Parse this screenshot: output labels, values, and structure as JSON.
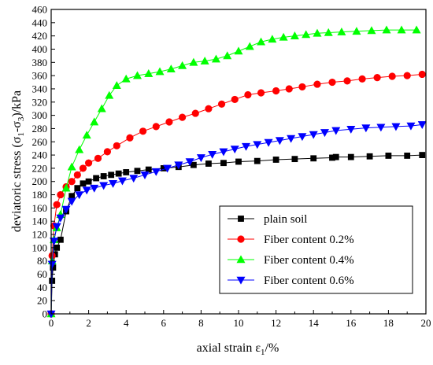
{
  "chart_data": {
    "type": "line",
    "xlabel": {
      "main": "axial strain ε",
      "sub": "1",
      "tail": "/%"
    },
    "ylabel": {
      "p1": "deviatoric stress (σ",
      "s1": "1",
      "p2": "-σ",
      "s2": "3",
      "p3": ")/kPa"
    },
    "xlim": [
      0,
      20
    ],
    "ylim": [
      0,
      460
    ],
    "xticks": [
      "0",
      "2",
      "4",
      "6",
      "8",
      "10",
      "12",
      "14",
      "16",
      "18",
      "20"
    ],
    "yticks": [
      "0",
      "20",
      "40",
      "60",
      "80",
      "100",
      "120",
      "140",
      "160",
      "180",
      "200",
      "220",
      "240",
      "260",
      "280",
      "300",
      "320",
      "340",
      "360",
      "380",
      "400",
      "420",
      "440",
      "460"
    ],
    "legend_position": "bottom-right",
    "series": [
      {
        "name": "plain soil",
        "color": "#000000",
        "marker": "square",
        "points": [
          [
            0,
            0
          ],
          [
            0.05,
            50
          ],
          [
            0.1,
            70
          ],
          [
            0.2,
            90
          ],
          [
            0.3,
            100
          ],
          [
            0.5,
            112
          ],
          [
            0.8,
            155
          ],
          [
            1.1,
            178
          ],
          [
            1.4,
            190
          ],
          [
            1.7,
            197
          ],
          [
            2.0,
            200
          ],
          [
            2.4,
            205
          ],
          [
            2.8,
            208
          ],
          [
            3.2,
            210
          ],
          [
            3.6,
            212
          ],
          [
            4.0,
            214
          ],
          [
            4.6,
            216
          ],
          [
            5.2,
            218
          ],
          [
            6.0,
            220
          ],
          [
            6.8,
            222
          ],
          [
            7.6,
            225
          ],
          [
            8.4,
            227
          ],
          [
            9.2,
            228
          ],
          [
            10.0,
            230
          ],
          [
            11.0,
            231
          ],
          [
            12.0,
            233
          ],
          [
            13.0,
            234
          ],
          [
            14.0,
            235
          ],
          [
            15.0,
            236
          ],
          [
            15.2,
            237
          ],
          [
            16.0,
            237
          ],
          [
            17.0,
            238
          ],
          [
            18.0,
            239
          ],
          [
            19.0,
            239
          ],
          [
            19.8,
            240
          ]
        ]
      },
      {
        "name": "Fiber content 0.2%",
        "color": "#ff0000",
        "marker": "circle",
        "points": [
          [
            0,
            0
          ],
          [
            0.05,
            88
          ],
          [
            0.15,
            133
          ],
          [
            0.3,
            165
          ],
          [
            0.5,
            180
          ],
          [
            0.8,
            192
          ],
          [
            1.1,
            200
          ],
          [
            1.4,
            210
          ],
          [
            1.7,
            220
          ],
          [
            2.0,
            228
          ],
          [
            2.5,
            235
          ],
          [
            3.0,
            245
          ],
          [
            3.5,
            254
          ],
          [
            4.2,
            266
          ],
          [
            4.9,
            276
          ],
          [
            5.6,
            283
          ],
          [
            6.3,
            290
          ],
          [
            7.0,
            297
          ],
          [
            7.7,
            303
          ],
          [
            8.4,
            310
          ],
          [
            9.1,
            317
          ],
          [
            9.8,
            324
          ],
          [
            10.5,
            331
          ],
          [
            11.2,
            334
          ],
          [
            12.0,
            337
          ],
          [
            12.7,
            340
          ],
          [
            13.4,
            343
          ],
          [
            14.2,
            347
          ],
          [
            15.0,
            350
          ],
          [
            15.8,
            352
          ],
          [
            16.6,
            355
          ],
          [
            17.4,
            357
          ],
          [
            18.2,
            359
          ],
          [
            19.0,
            360
          ],
          [
            19.8,
            362
          ]
        ]
      },
      {
        "name": "Fiber content 0.4%",
        "color": "#00ff00",
        "marker": "triangle-up",
        "points": [
          [
            0,
            0
          ],
          [
            0.05,
            80
          ],
          [
            0.15,
            112
          ],
          [
            0.3,
            130
          ],
          [
            0.5,
            150
          ],
          [
            0.8,
            190
          ],
          [
            1.1,
            222
          ],
          [
            1.5,
            248
          ],
          [
            1.9,
            270
          ],
          [
            2.3,
            290
          ],
          [
            2.7,
            310
          ],
          [
            3.1,
            330
          ],
          [
            3.5,
            345
          ],
          [
            4.0,
            355
          ],
          [
            4.6,
            360
          ],
          [
            5.2,
            363
          ],
          [
            5.8,
            366
          ],
          [
            6.4,
            370
          ],
          [
            7.0,
            375
          ],
          [
            7.6,
            380
          ],
          [
            8.2,
            382
          ],
          [
            8.8,
            385
          ],
          [
            9.4,
            390
          ],
          [
            10.0,
            397
          ],
          [
            10.6,
            404
          ],
          [
            11.2,
            411
          ],
          [
            11.8,
            415
          ],
          [
            12.4,
            418
          ],
          [
            13.0,
            420
          ],
          [
            13.6,
            422
          ],
          [
            14.2,
            424
          ],
          [
            14.8,
            425
          ],
          [
            15.5,
            426
          ],
          [
            16.3,
            427
          ],
          [
            17.1,
            428
          ],
          [
            17.9,
            429
          ],
          [
            18.7,
            429
          ],
          [
            19.5,
            429
          ]
        ]
      },
      {
        "name": "Fiber content 0.6%",
        "color": "#0000ff",
        "marker": "triangle-down",
        "points": [
          [
            0,
            0
          ],
          [
            0.05,
            75
          ],
          [
            0.15,
            110
          ],
          [
            0.3,
            132
          ],
          [
            0.5,
            145
          ],
          [
            0.8,
            158
          ],
          [
            1.1,
            170
          ],
          [
            1.5,
            180
          ],
          [
            1.9,
            187
          ],
          [
            2.3,
            190
          ],
          [
            2.8,
            194
          ],
          [
            3.3,
            197
          ],
          [
            3.8,
            201
          ],
          [
            4.4,
            205
          ],
          [
            5.0,
            210
          ],
          [
            5.6,
            215
          ],
          [
            6.2,
            220
          ],
          [
            6.8,
            225
          ],
          [
            7.4,
            230
          ],
          [
            8.0,
            236
          ],
          [
            8.6,
            241
          ],
          [
            9.2,
            245
          ],
          [
            9.8,
            249
          ],
          [
            10.4,
            253
          ],
          [
            11.0,
            256
          ],
          [
            11.6,
            259
          ],
          [
            12.2,
            262
          ],
          [
            12.8,
            265
          ],
          [
            13.4,
            268
          ],
          [
            14.0,
            271
          ],
          [
            14.6,
            274
          ],
          [
            15.2,
            277
          ],
          [
            16.0,
            279
          ],
          [
            16.8,
            281
          ],
          [
            17.6,
            282
          ],
          [
            18.4,
            283
          ],
          [
            19.2,
            284
          ],
          [
            19.8,
            286
          ]
        ]
      }
    ]
  }
}
